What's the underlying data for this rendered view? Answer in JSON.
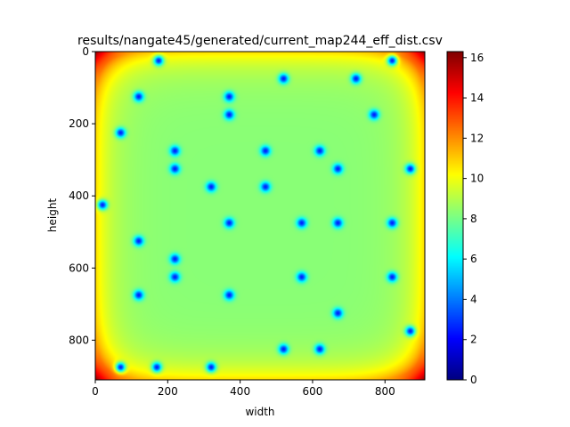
{
  "chart_data": {
    "type": "heatmap",
    "title": "results/nangate45/generated/current_map244_eff_dist.csv",
    "xlabel": "width",
    "ylabel": "height",
    "xlim": [
      0,
      910
    ],
    "ylim": [
      910,
      0
    ],
    "x_ticks": [
      0,
      200,
      400,
      600,
      800
    ],
    "y_ticks": [
      0,
      200,
      400,
      600,
      800
    ],
    "colorbar": {
      "min": 0,
      "max": 16.3,
      "ticks": [
        0,
        2,
        4,
        6,
        8,
        10,
        12,
        14,
        16
      ],
      "colormap": "jet"
    },
    "grid": false,
    "corner_value": 16.3,
    "background_value": 8.3,
    "edge_value": 10.8,
    "hotspot_value": 2.5,
    "hotspots": [
      {
        "x": 175,
        "y": 25
      },
      {
        "x": 820,
        "y": 25
      },
      {
        "x": 520,
        "y": 75
      },
      {
        "x": 720,
        "y": 75
      },
      {
        "x": 120,
        "y": 125
      },
      {
        "x": 370,
        "y": 125
      },
      {
        "x": 370,
        "y": 175
      },
      {
        "x": 770,
        "y": 175
      },
      {
        "x": 70,
        "y": 225
      },
      {
        "x": 220,
        "y": 275
      },
      {
        "x": 470,
        "y": 275
      },
      {
        "x": 620,
        "y": 275
      },
      {
        "x": 220,
        "y": 325
      },
      {
        "x": 670,
        "y": 325
      },
      {
        "x": 870,
        "y": 325
      },
      {
        "x": 320,
        "y": 375
      },
      {
        "x": 470,
        "y": 375
      },
      {
        "x": 20,
        "y": 425
      },
      {
        "x": 370,
        "y": 475
      },
      {
        "x": 570,
        "y": 475
      },
      {
        "x": 670,
        "y": 475
      },
      {
        "x": 820,
        "y": 475
      },
      {
        "x": 120,
        "y": 525
      },
      {
        "x": 220,
        "y": 575
      },
      {
        "x": 220,
        "y": 625
      },
      {
        "x": 570,
        "y": 625
      },
      {
        "x": 820,
        "y": 625
      },
      {
        "x": 120,
        "y": 675
      },
      {
        "x": 370,
        "y": 675
      },
      {
        "x": 670,
        "y": 725
      },
      {
        "x": 870,
        "y": 775
      },
      {
        "x": 520,
        "y": 825
      },
      {
        "x": 620,
        "y": 825
      },
      {
        "x": 70,
        "y": 875
      },
      {
        "x": 170,
        "y": 875
      },
      {
        "x": 320,
        "y": 875
      }
    ]
  }
}
